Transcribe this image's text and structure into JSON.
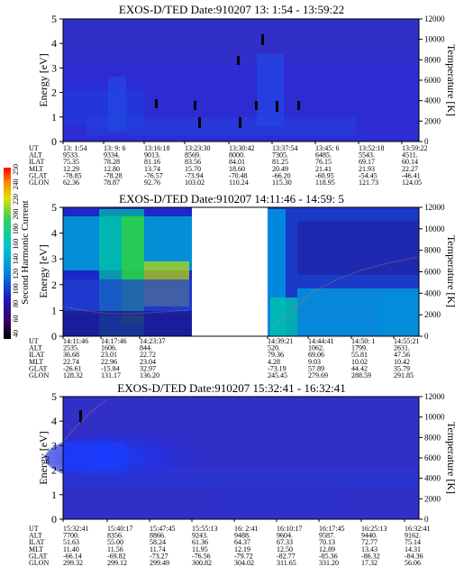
{
  "chart_data": [
    {
      "type": "heatmap",
      "title": "EXOS-D/TED   Date:910207   13: 1:54 - 13:59:22",
      "ylabel": "Energy [eV]",
      "y2label": "Temperature [K]",
      "ylim": [
        0,
        5
      ],
      "y2lim": [
        0,
        12000
      ],
      "yticks": [
        "0",
        "1",
        "2",
        "3",
        "4",
        "5"
      ],
      "y2ticks": [
        "0",
        "2000",
        "4000",
        "6000",
        "8000",
        "10000",
        "12000"
      ],
      "row_labels": [
        "UT",
        "ALT",
        "ILAT",
        "MLT",
        "GLAT",
        "GLON"
      ],
      "columns": [
        [
          "13: 1:54",
          "9533.",
          "75.35",
          "12.29",
          "-78.85",
          "62.36"
        ],
        [
          "13: 9: 6",
          "9334.",
          "78.28",
          "12.80",
          "-78.28",
          "78.87"
        ],
        [
          "13:16:18",
          "9013.",
          "81.16",
          "13.74",
          "-76.57",
          "92.76"
        ],
        [
          "13:23:30",
          "8569.",
          "83.56",
          "15.70",
          "-73.94",
          "103.02"
        ],
        [
          "13:30:42",
          "8000.",
          "84.01",
          "18.60",
          "-70.48",
          "110.24"
        ],
        [
          "13:37:54",
          "7305.",
          "81.25",
          "20.49",
          "-66.20",
          "115.30"
        ],
        [
          "13:45: 6",
          "6485.",
          "76.15",
          "21.41",
          "-60.95",
          "118.95"
        ],
        [
          "13:52:18",
          "5543.",
          "69.17",
          "21.93",
          "-54.45",
          "121.73"
        ],
        [
          "13:59:22",
          "4511.",
          "60.14",
          "22.27",
          "-46.41",
          "124.05"
        ]
      ]
    },
    {
      "type": "heatmap",
      "title": "EXOS-D/TED   Date:910207   14:11:46 - 14:59: 5",
      "ylabel": "Energy [eV]",
      "y2label": "Temperature [K]",
      "ylim": [
        0,
        5
      ],
      "y2lim": [
        0,
        12000
      ],
      "yticks": [
        "0",
        "1",
        "2",
        "3",
        "4",
        "5"
      ],
      "y2ticks": [
        "0",
        "2000",
        "4000",
        "6000",
        "8000",
        "10000",
        "12000"
      ],
      "row_labels": [
        "UT",
        "ALT",
        "ILAT",
        "MLT",
        "GLAT",
        "GLON"
      ],
      "columns": [
        [
          "14:11:46",
          "2535.",
          "36.68",
          "22.74",
          "-26.61",
          "128.32"
        ],
        [
          "14:17:46",
          "1606.",
          "23.01",
          "22.96",
          "-15.84",
          "131.17"
        ],
        [
          "14:23:37",
          "844.",
          "22.72",
          "23.04",
          "32.97",
          "136.20"
        ],
        [
          "14:39:21",
          "520.",
          "79.36",
          "4.28",
          "-73.19",
          "245.45"
        ],
        [
          "14:44:41",
          "1062.",
          "69.06",
          "9.03",
          "57.89",
          "279.69"
        ],
        [
          "14:50: 1",
          "1799.",
          "55.81",
          "10.02",
          "44.42",
          "288.59"
        ],
        [
          "14:55:21",
          "2631.",
          "47.56",
          "10.42",
          "35.79",
          "291.85"
        ]
      ],
      "colorbar": {
        "label": "Second Harmonic Current",
        "ticks": [
          "40",
          "60",
          "80",
          "100",
          "120",
          "140",
          "160",
          "180",
          "200",
          "220",
          "240",
          "250"
        ]
      }
    },
    {
      "type": "heatmap",
      "title": "EXOS-D/TED   Date:910207   15:32:41 - 16:32:41",
      "ylabel": "Energy [eV]",
      "y2label": "Temperature [K]",
      "ylim": [
        0,
        5
      ],
      "y2lim": [
        0,
        12000
      ],
      "yticks": [
        "0",
        "1",
        "2",
        "3",
        "4",
        "5"
      ],
      "y2ticks": [
        "0",
        "2000",
        "4000",
        "6000",
        "8000",
        "10000",
        "12000"
      ],
      "row_labels": [
        "UT",
        "ALT",
        "ILAT",
        "MLT",
        "GLAT",
        "GLON"
      ],
      "columns": [
        [
          "15:32:41",
          "7700.",
          "51.63",
          "11.40",
          "-66.14",
          "299.32"
        ],
        [
          "15:40:17",
          "8356.",
          "55.00",
          "11.56",
          "-69.82",
          "299.12"
        ],
        [
          "15:47:45",
          "8866.",
          "58.24",
          "11.74",
          "-73.27",
          "299.49"
        ],
        [
          "15:55:13",
          "9243.",
          "61.36",
          "11.95",
          "-76.56",
          "300.82"
        ],
        [
          "16: 2:41",
          "9488.",
          "64.37",
          "12.19",
          "-79.72",
          "304.02"
        ],
        [
          "16:10:17",
          "9604.",
          "67.33",
          "12.50",
          "-82.77",
          "311.65"
        ],
        [
          "16:17:45",
          "9587.",
          "70.13",
          "12.89",
          "-85.36",
          "331.20"
        ],
        [
          "16:25:13",
          "9440.",
          "72.77",
          "13.43",
          "-86.32",
          "17.32"
        ],
        [
          "16:32:41",
          "9162.",
          "75.14",
          "14.31",
          "-84.36",
          "56.06"
        ]
      ]
    }
  ]
}
